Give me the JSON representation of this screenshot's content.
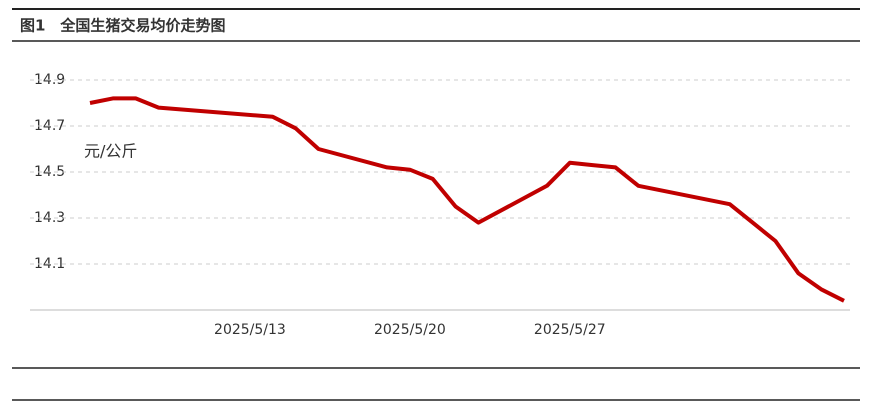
{
  "chart_data": {
    "type": "line",
    "title": "图1　全国生猪交易均价走势图",
    "y_unit": "元/公斤",
    "x": [
      "2025/5/6",
      "2025/5/7",
      "2025/5/8",
      "2025/5/9",
      "2025/5/14",
      "2025/5/15",
      "2025/5/16",
      "2025/5/19",
      "2025/5/20",
      "2025/5/21",
      "2025/5/22",
      "2025/5/23",
      "2025/5/26",
      "2025/5/27",
      "2025/5/28",
      "2025/5/29",
      "2025/5/30",
      "2025/6/3",
      "2025/6/4",
      "2025/6/5",
      "2025/6/6",
      "2025/6/7",
      "2025/6/8"
    ],
    "series": [
      {
        "color": "#c00000",
        "values": [
          14.8,
          14.82,
          14.82,
          14.78,
          14.74,
          14.69,
          14.6,
          14.52,
          14.51,
          14.47,
          14.35,
          14.28,
          14.44,
          14.54,
          14.53,
          14.52,
          14.44,
          14.36,
          14.28,
          14.2,
          14.06,
          13.99,
          13.94
        ]
      }
    ],
    "xlim": [
      "2025/5/6",
      "2025/6/8"
    ],
    "xticks": [
      "2025/5/13",
      "2025/5/20",
      "2025/5/27"
    ],
    "ylim": [
      13.9,
      14.9
    ],
    "yticks": [
      14.1,
      14.3,
      14.5,
      14.7,
      14.9
    ],
    "grid": true
  }
}
